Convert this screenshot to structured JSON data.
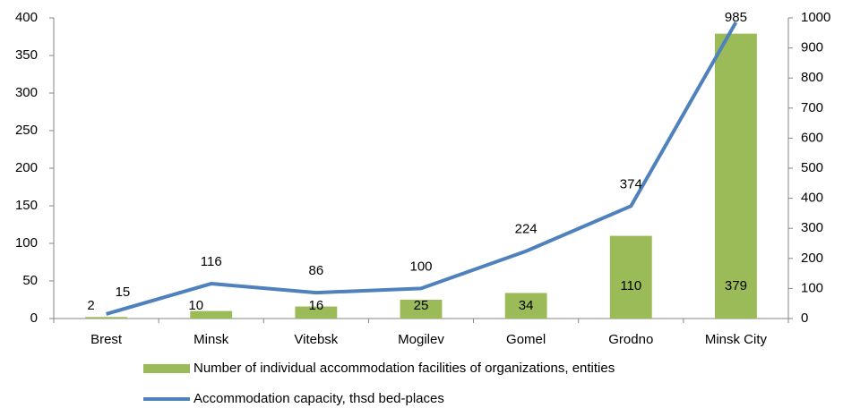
{
  "chart_data": {
    "type": "bar",
    "categories": [
      "Brest",
      "Minsk",
      "Vitebsk",
      "Mogilev",
      "Gomel",
      "Grodno",
      "Minsk City"
    ],
    "series": [
      {
        "name": "Number of individual accommodation facilities of organizations, entities",
        "type": "bar",
        "color": "#9bbb59",
        "values": [
          2,
          10,
          16,
          25,
          34,
          110,
          379
        ]
      },
      {
        "name": "Accommodation capacity, thsd bed-places",
        "type": "line",
        "axis": "y2",
        "color": "#4f81bd",
        "values": [
          15,
          116,
          86,
          100,
          224,
          374,
          985
        ]
      }
    ],
    "ylim": [
      0,
      400
    ],
    "yticks": [
      0,
      50,
      100,
      150,
      200,
      250,
      300,
      350,
      400
    ],
    "y2lim": [
      0,
      1000
    ],
    "y2ticks": [
      0,
      100,
      200,
      300,
      400,
      500,
      600,
      700,
      800,
      900,
      1000
    ],
    "grid": false,
    "legend": "bottom"
  }
}
